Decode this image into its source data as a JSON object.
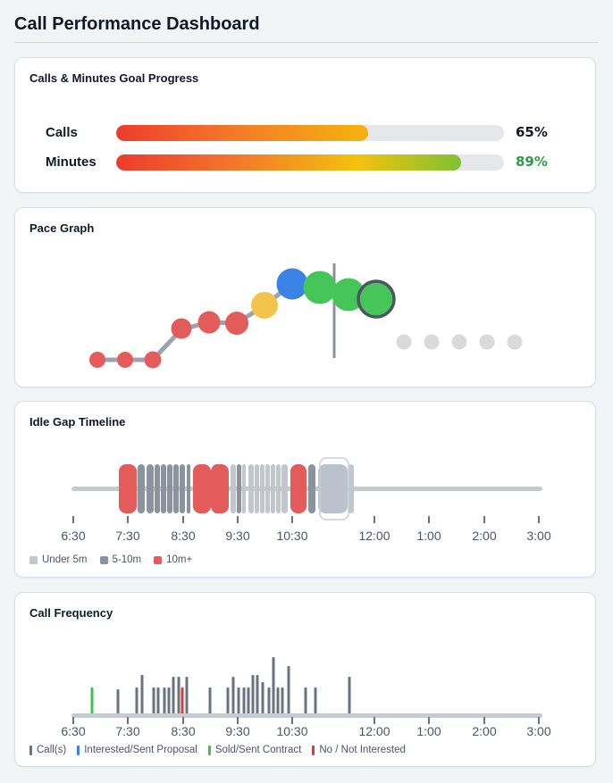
{
  "page": {
    "title": "Call Performance Dashboard"
  },
  "goal_progress": {
    "title": "Calls & Minutes Goal Progress",
    "rows": [
      {
        "label": "Calls",
        "percent_text": "65%",
        "value": 0.65,
        "percent_color": "#111827"
      },
      {
        "label": "Minutes",
        "percent_text": "89%",
        "value": 0.89,
        "percent_color": "#2e9b45"
      }
    ]
  },
  "pace_graph": {
    "title": "Pace Graph",
    "colors": {
      "red": "#e35b5b",
      "yellow": "#f2c44c",
      "blue": "#3b82e6",
      "green": "#46c559",
      "grey": "#d1d5db",
      "line": "#9ca3af"
    }
  },
  "idle_gap": {
    "title": "Idle Gap Timeline",
    "ticks": [
      "6:30",
      "7:30",
      "8:30",
      "9:30",
      "10:30",
      "12:00",
      "1:00",
      "2:00",
      "3:00"
    ],
    "legend": [
      {
        "label": "Under 5m",
        "color": "#c1c6cf"
      },
      {
        "label": "5-10m",
        "color": "#8b93a1"
      },
      {
        "label": "10m+",
        "color": "#e35b5b"
      }
    ]
  },
  "call_frequency": {
    "title": "Call Frequency",
    "ticks": [
      "6:30",
      "7:30",
      "8:30",
      "9:30",
      "10:30",
      "12:00",
      "1:00",
      "2:00",
      "3:00"
    ],
    "legend": [
      {
        "label": "Call(s)",
        "color": "#6b7280"
      },
      {
        "label": "Interested/Sent Proposal",
        "color": "#3b82e6"
      },
      {
        "label": "Sold/Sent Contract",
        "color": "#3ec24d"
      },
      {
        "label": "No / Not Interested",
        "color": "#d93a3a"
      }
    ]
  }
}
